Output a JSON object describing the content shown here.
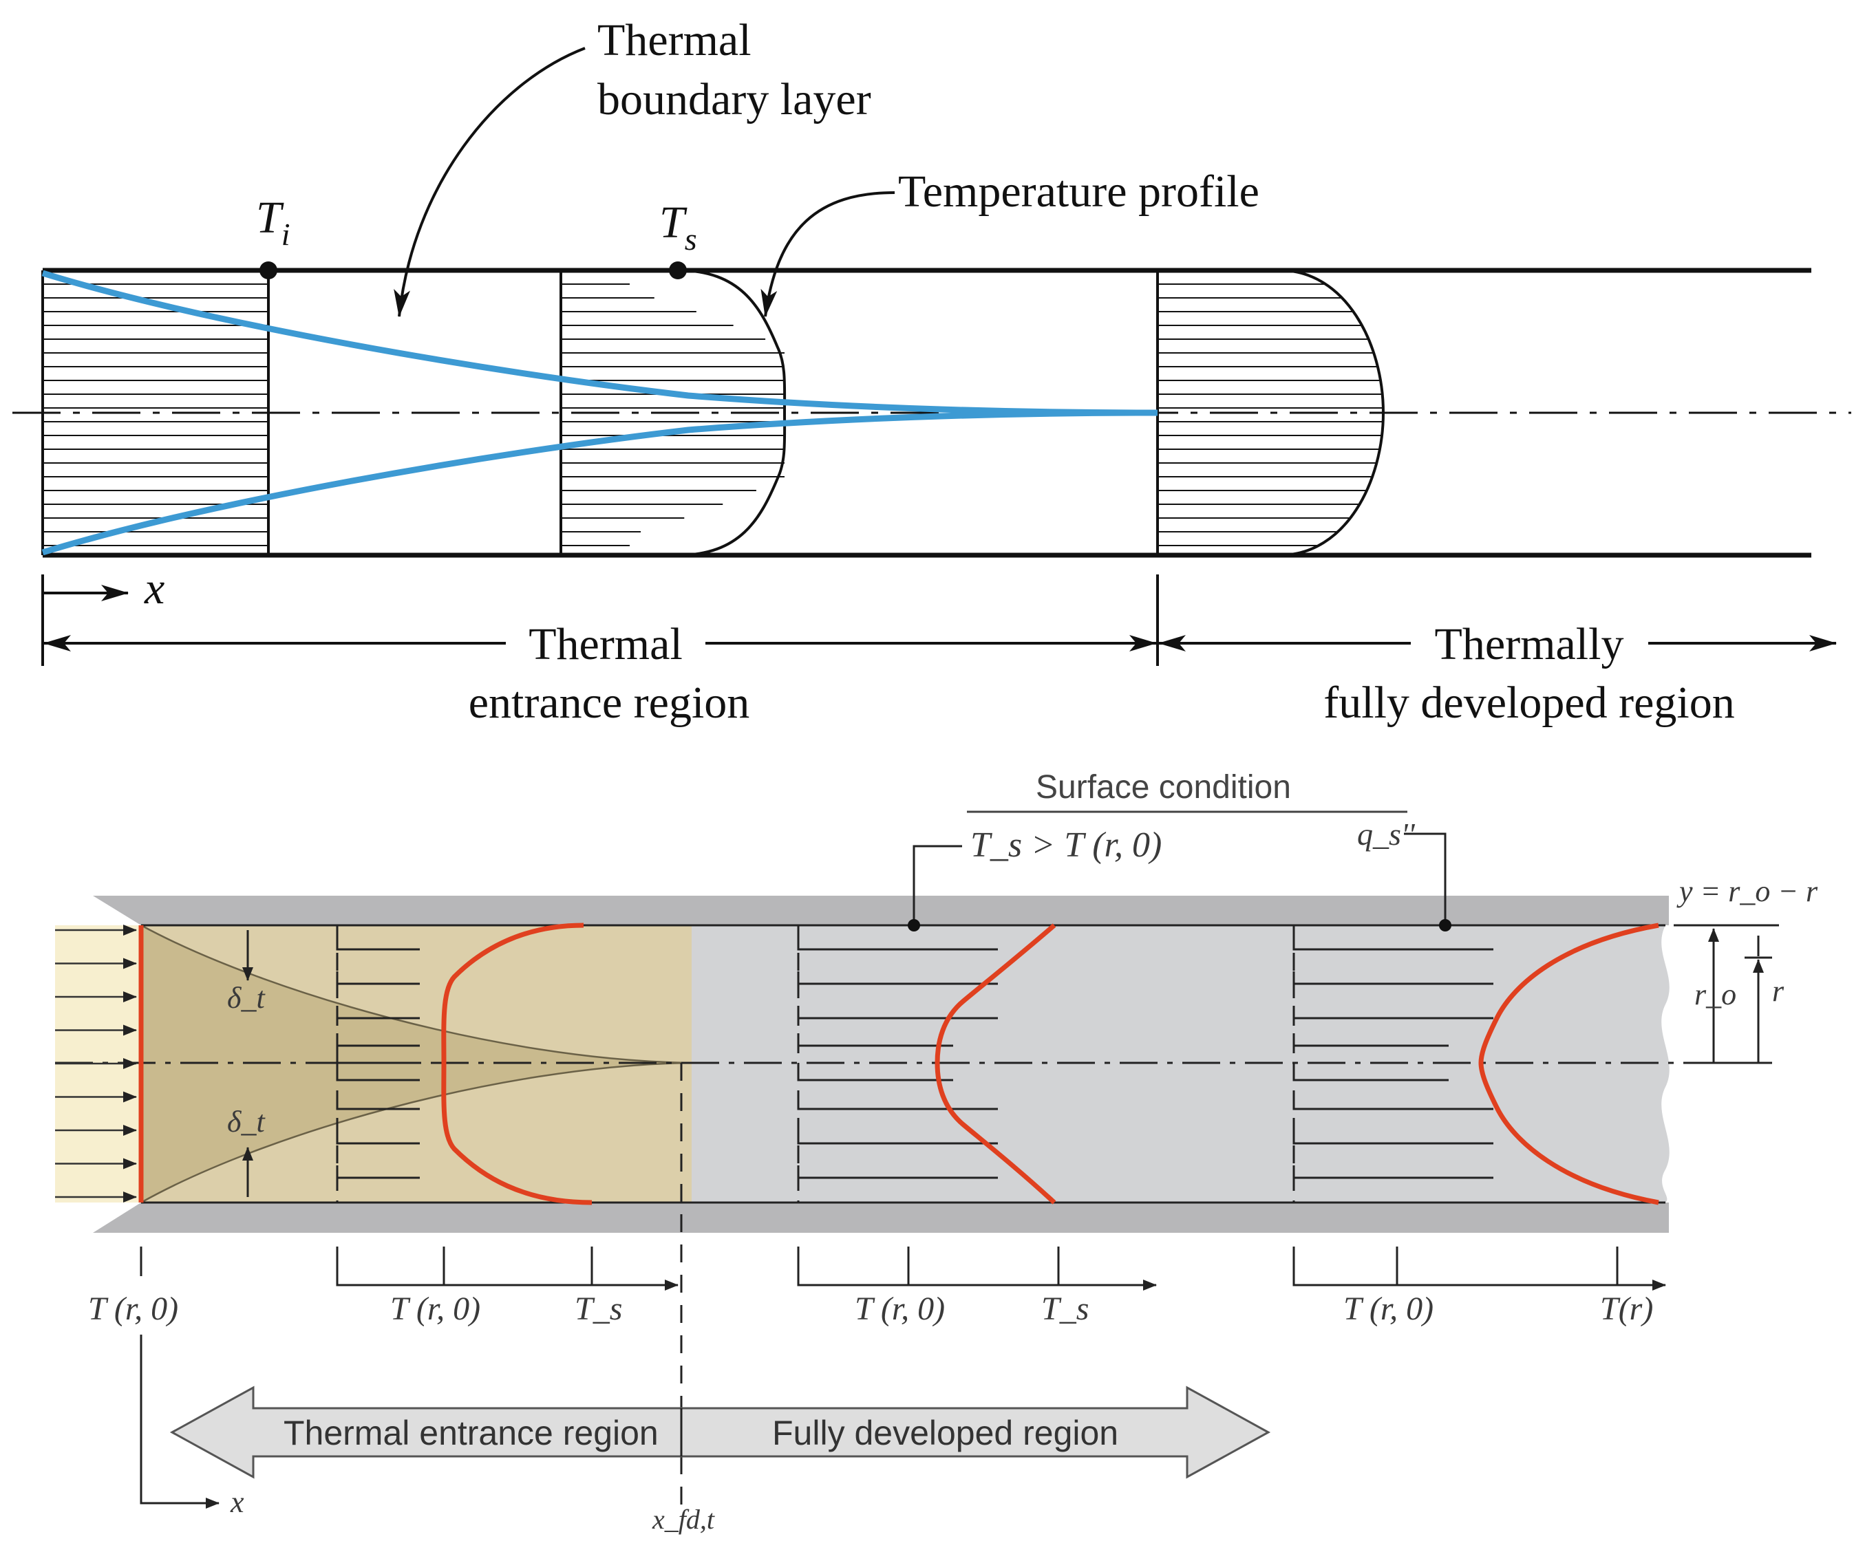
{
  "colors": {
    "ink": "#111111",
    "boundary_layer": "#3d9ad3",
    "profile_red": "#e0401f",
    "entrance_fill": "#dccfaa",
    "entrance_fill_dark": "#c9ba8e",
    "inflow_fill": "#f7efcf",
    "pipe_wall": "#b7b7b9",
    "developed_fill": "#d2d3d5",
    "arrow_fill": "#dedede",
    "dim_ink": "#3a3a3a"
  },
  "top": {
    "thermal_boundary_layer": [
      "Thermal",
      "boundary layer"
    ],
    "temperature_profile": "Temperature profile",
    "T_i": {
      "main": "T",
      "sub": "i"
    },
    "T_s": {
      "main": "T",
      "sub": "s"
    },
    "x": "x",
    "entrance_region": [
      "Thermal",
      "entrance region"
    ],
    "developed_region": [
      "Thermally",
      "fully developed region"
    ]
  },
  "bottom": {
    "surface_condition": "Surface condition",
    "cond_temperature": "T_s > T (r, 0)",
    "cond_flux": "q_s''",
    "y_eq": "y = r_o − r",
    "r_o": "r_o",
    "r": "r",
    "delta_t": "δ_t",
    "T_r0": "T (r, 0)",
    "T_s": "T_s",
    "T_r": "T(r)",
    "x": "x",
    "x_fd": "x_fd,t",
    "entrance_region": "Thermal entrance region",
    "developed_region": "Fully developed region"
  }
}
